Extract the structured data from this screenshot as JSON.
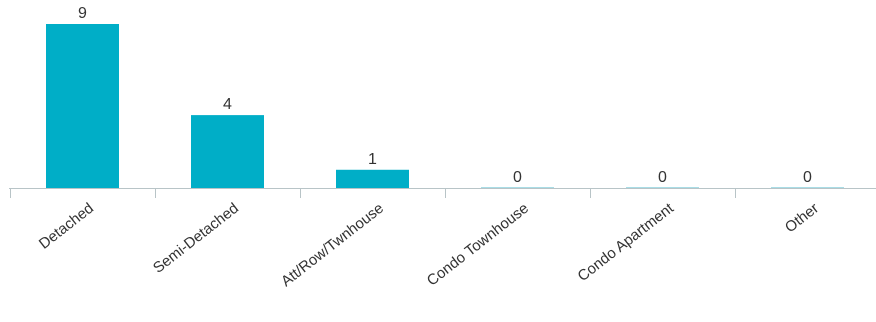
{
  "chart_data": {
    "type": "bar",
    "categories": [
      "Detached",
      "Semi-Detached",
      "Att/Row/Twnhouse",
      "Condo Townhouse",
      "Condo Apartment",
      "Other"
    ],
    "values": [
      9,
      4,
      1,
      0,
      0,
      0
    ],
    "title": "",
    "xlabel": "",
    "ylabel": "",
    "ylim": [
      0,
      9
    ],
    "grid": false,
    "data_labels": true,
    "colors": {
      "bar": "#00aec7",
      "zero_bar": "#a9dde6",
      "axis": "#b8c4c7",
      "text": "#333333"
    }
  }
}
